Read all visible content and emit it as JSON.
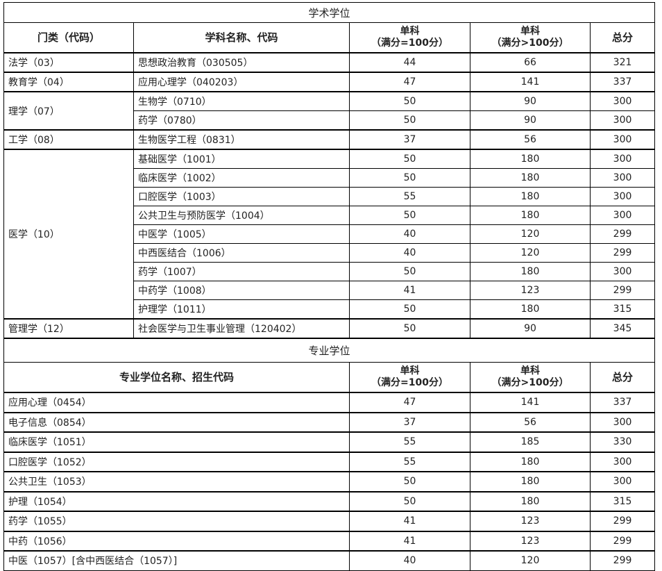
{
  "academic": {
    "title": "学术学位",
    "headers": {
      "category": "门类（代码）",
      "subject": "学科名称、代码",
      "single100_line1": "单科",
      "single100_line2": "（满分=100分）",
      "singleOver_line1": "单科",
      "singleOver_line2": "（满分>100分）",
      "total": "总分"
    },
    "groups": [
      {
        "category": "法学（03）",
        "rows": [
          {
            "subject": "思想政治教育（030505）",
            "s100": "44",
            "sOver": "66",
            "total": "321"
          }
        ]
      },
      {
        "category": "教育学（04）",
        "rows": [
          {
            "subject": "应用心理学（040203）",
            "s100": "47",
            "sOver": "141",
            "total": "337"
          }
        ]
      },
      {
        "category": "理学（07）",
        "rows": [
          {
            "subject": "生物学（0710）",
            "s100": "50",
            "sOver": "90",
            "total": "300"
          },
          {
            "subject": "药学（0780）",
            "s100": "50",
            "sOver": "90",
            "total": "300"
          }
        ]
      },
      {
        "category": "工学（08）",
        "rows": [
          {
            "subject": "生物医学工程（0831）",
            "s100": "37",
            "sOver": "56",
            "total": "300"
          }
        ]
      },
      {
        "category": "医学（10）",
        "rows": [
          {
            "subject": "基础医学（1001）",
            "s100": "50",
            "sOver": "180",
            "total": "300"
          },
          {
            "subject": "临床医学（1002）",
            "s100": "50",
            "sOver": "180",
            "total": "300"
          },
          {
            "subject": "口腔医学（1003）",
            "s100": "55",
            "sOver": "180",
            "total": "300"
          },
          {
            "subject": "公共卫生与预防医学（1004）",
            "s100": "50",
            "sOver": "180",
            "total": "300"
          },
          {
            "subject": "中医学（1005）",
            "s100": "40",
            "sOver": "120",
            "total": "299"
          },
          {
            "subject": "中西医结合（1006）",
            "s100": "40",
            "sOver": "120",
            "total": "299"
          },
          {
            "subject": "药学（1007）",
            "s100": "50",
            "sOver": "180",
            "total": "300"
          },
          {
            "subject": "中药学（1008）",
            "s100": "41",
            "sOver": "123",
            "total": "299"
          },
          {
            "subject": "护理学（1011）",
            "s100": "50",
            "sOver": "180",
            "total": "315"
          }
        ]
      },
      {
        "category": "管理学（12）",
        "rows": [
          {
            "subject": "社会医学与卫生事业管理（120402）",
            "s100": "50",
            "sOver": "90",
            "total": "345"
          }
        ]
      }
    ]
  },
  "professional": {
    "title": "专业学位",
    "headers": {
      "name": "专业学位名称、招生代码",
      "single100_line1": "单科",
      "single100_line2": "（满分=100分）",
      "singleOver_line1": "单科",
      "singleOver_line2": "（满分>100分）",
      "total": "总分"
    },
    "rows": [
      {
        "name": "应用心理（0454）",
        "s100": "47",
        "sOver": "141",
        "total": "337"
      },
      {
        "name": "电子信息（0854）",
        "s100": "37",
        "sOver": "56",
        "total": "300"
      },
      {
        "name": "临床医学（1051）",
        "s100": "55",
        "sOver": "185",
        "total": "330"
      },
      {
        "name": "口腔医学（1052）",
        "s100": "55",
        "sOver": "180",
        "total": "300"
      },
      {
        "name": "公共卫生（1053）",
        "s100": "50",
        "sOver": "180",
        "total": "300"
      },
      {
        "name": "护理（1054）",
        "s100": "50",
        "sOver": "180",
        "total": "315"
      },
      {
        "name": "药学（1055）",
        "s100": "41",
        "sOver": "123",
        "total": "299"
      },
      {
        "name": "中药（1056）",
        "s100": "41",
        "sOver": "123",
        "total": "299"
      },
      {
        "name": "中医（1057）[含中西医结合（1057）]",
        "s100": "40",
        "sOver": "120",
        "total": "299"
      }
    ]
  }
}
